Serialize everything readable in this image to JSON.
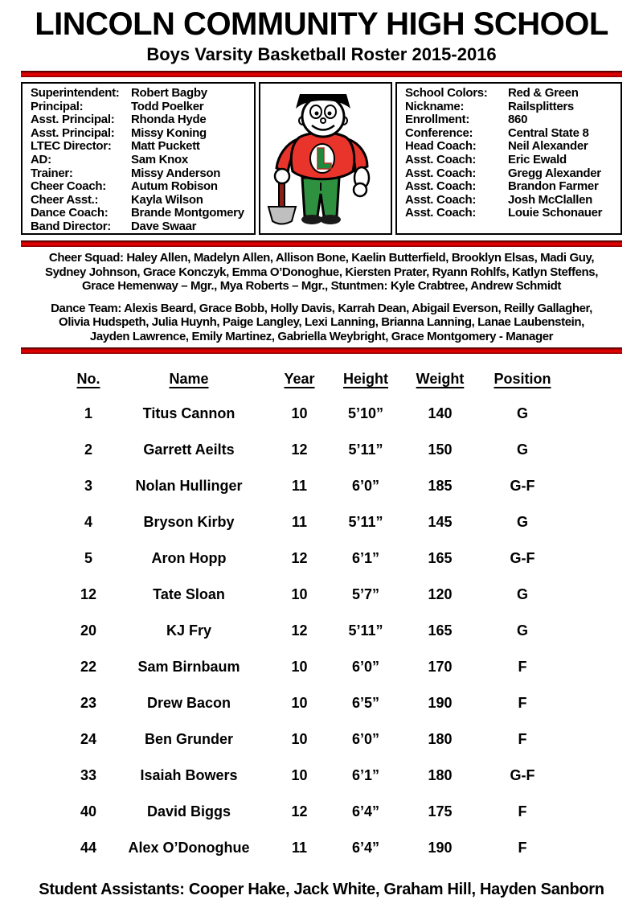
{
  "header": {
    "title": "LINCOLN COMMUNITY HIGH SCHOOL",
    "subtitle": "Boys Varsity Basketball Roster 2015-2016"
  },
  "staff_box": {
    "rows": [
      {
        "label": "Superintendent:",
        "value": "Robert Bagby"
      },
      {
        "label": "Principal:",
        "value": "Todd Poelker"
      },
      {
        "label": "Asst. Principal:",
        "value": "Rhonda Hyde"
      },
      {
        "label": "Asst. Principal:",
        "value": "Missy Koning"
      },
      {
        "label": "LTEC Director:",
        "value": "Matt Puckett"
      },
      {
        "label": "AD:",
        "value": "Sam Knox"
      },
      {
        "label": "Trainer:",
        "value": "Missy Anderson"
      },
      {
        "label": "Cheer Coach:",
        "value": "Autum Robison"
      },
      {
        "label": "Cheer Asst.:",
        "value": "Kayla Wilson"
      },
      {
        "label": "Dance Coach:",
        "value": "Brande Montgomery"
      },
      {
        "label": "Band Director:",
        "value": "Dave Swaar"
      }
    ]
  },
  "school_box": {
    "rows": [
      {
        "label": "School Colors:",
        "value": "Red & Green"
      },
      {
        "label": "Nickname:",
        "value": "Railsplitters"
      },
      {
        "label": "Enrollment:",
        "value": "860"
      },
      {
        "label": "Conference:",
        "value": "Central State 8"
      },
      {
        "label": "Head Coach:",
        "value": "Neil Alexander"
      },
      {
        "label": "Asst. Coach:",
        "value": "Eric Ewald"
      },
      {
        "label": "Asst. Coach:",
        "value": "Gregg Alexander"
      },
      {
        "label": "Asst. Coach:",
        "value": "Brandon Farmer"
      },
      {
        "label": "Asst. Coach:",
        "value": "Josh McClallen"
      },
      {
        "label": "Asst. Coach:",
        "value": "Louie Schonauer"
      }
    ]
  },
  "mascot": {
    "chest_letter": "L",
    "shirt_color": "#e8342a",
    "pants_color": "#2e9140",
    "letter_color": "#1f8a3c"
  },
  "cheer_squad": {
    "lines": [
      "Cheer Squad:  Haley Allen, Madelyn Allen, Allison Bone, Kaelin Butterfield, Brooklyn Elsas, Madi Guy,",
      "Sydney Johnson, Grace Konczyk, Emma O’Donoghue, Kiersten Prater, Ryann Rohlfs, Katlyn Steffens,",
      "Grace Hemenway – Mgr., Mya Roberts – Mgr., Stuntmen:  Kyle Crabtree, Andrew Schmidt"
    ]
  },
  "dance_team": {
    "lines": [
      "Dance Team: Alexis Beard, Grace Bobb, Holly Davis, Karrah Dean, Abigail Everson, Reilly Gallagher,",
      "Olivia Hudspeth, Julia Huynh, Paige Langley, Lexi Lanning, Brianna Lanning, Lanae Laubenstein,",
      "Jayden Lawrence, Emily Martinez, Gabriella Weybright, Grace Montgomery - Manager"
    ]
  },
  "roster": {
    "columns": [
      "No.",
      "Name",
      "Year",
      "Height",
      "Weight",
      "Position"
    ],
    "players": [
      {
        "no": "1",
        "name": "Titus Cannon",
        "year": "10",
        "height": "5’10”",
        "weight": "140",
        "position": "G"
      },
      {
        "no": "2",
        "name": "Garrett Aeilts",
        "year": "12",
        "height": "5’11”",
        "weight": "150",
        "position": "G"
      },
      {
        "no": "3",
        "name": "Nolan Hullinger",
        "year": "11",
        "height": "6’0”",
        "weight": "185",
        "position": "G-F"
      },
      {
        "no": "4",
        "name": "Bryson Kirby",
        "year": "11",
        "height": "5’11”",
        "weight": "145",
        "position": "G"
      },
      {
        "no": "5",
        "name": "Aron Hopp",
        "year": "12",
        "height": "6’1”",
        "weight": "165",
        "position": "G-F"
      },
      {
        "no": "12",
        "name": "Tate Sloan",
        "year": "10",
        "height": "5’7”",
        "weight": "120",
        "position": "G"
      },
      {
        "no": "20",
        "name": "KJ Fry",
        "year": "12",
        "height": "5’11”",
        "weight": "165",
        "position": "G"
      },
      {
        "no": "22",
        "name": "Sam Birnbaum",
        "year": "10",
        "height": "6’0”",
        "weight": "170",
        "position": "F"
      },
      {
        "no": "23",
        "name": "Drew Bacon",
        "year": "10",
        "height": "6’5”",
        "weight": "190",
        "position": "F"
      },
      {
        "no": "24",
        "name": "Ben Grunder",
        "year": "10",
        "height": "6’0”",
        "weight": "180",
        "position": "F"
      },
      {
        "no": "33",
        "name": "Isaiah Bowers",
        "year": "10",
        "height": "6’1”",
        "weight": "180",
        "position": "G-F"
      },
      {
        "no": "40",
        "name": "David Biggs",
        "year": "12",
        "height": "6’4”",
        "weight": "175",
        "position": "F"
      },
      {
        "no": "44",
        "name": "Alex O’Donoghue",
        "year": "11",
        "height": "6’4”",
        "weight": "190",
        "position": "F"
      }
    ]
  },
  "footer": {
    "text": "Student Assistants:  Cooper Hake, Jack White, Graham Hill, Hayden Sanborn"
  }
}
